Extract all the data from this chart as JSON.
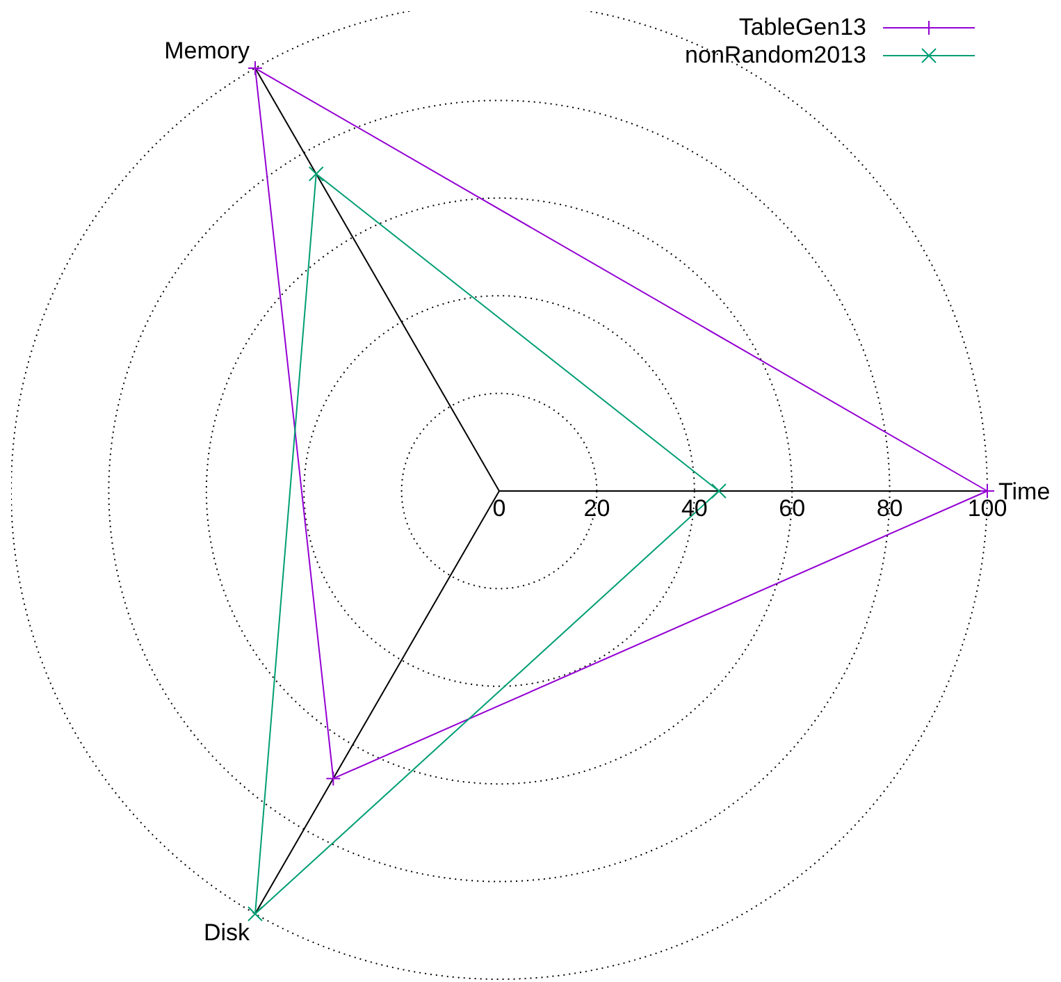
{
  "chart_data": {
    "type": "radar",
    "categories": [
      "Memory",
      "Time",
      "Disk"
    ],
    "series": [
      {
        "name": "TableGen13",
        "color": "#9400d3",
        "marker": "cross",
        "values": [
          100,
          100,
          68
        ]
      },
      {
        "name": "nonRandom2013",
        "color": "#009e73",
        "marker": "cross",
        "values": [
          75,
          45,
          100
        ]
      }
    ],
    "ylim": [
      0,
      100
    ],
    "yticks": [
      0,
      20,
      40,
      60,
      80,
      100
    ],
    "grid": true,
    "legend": "top right"
  }
}
